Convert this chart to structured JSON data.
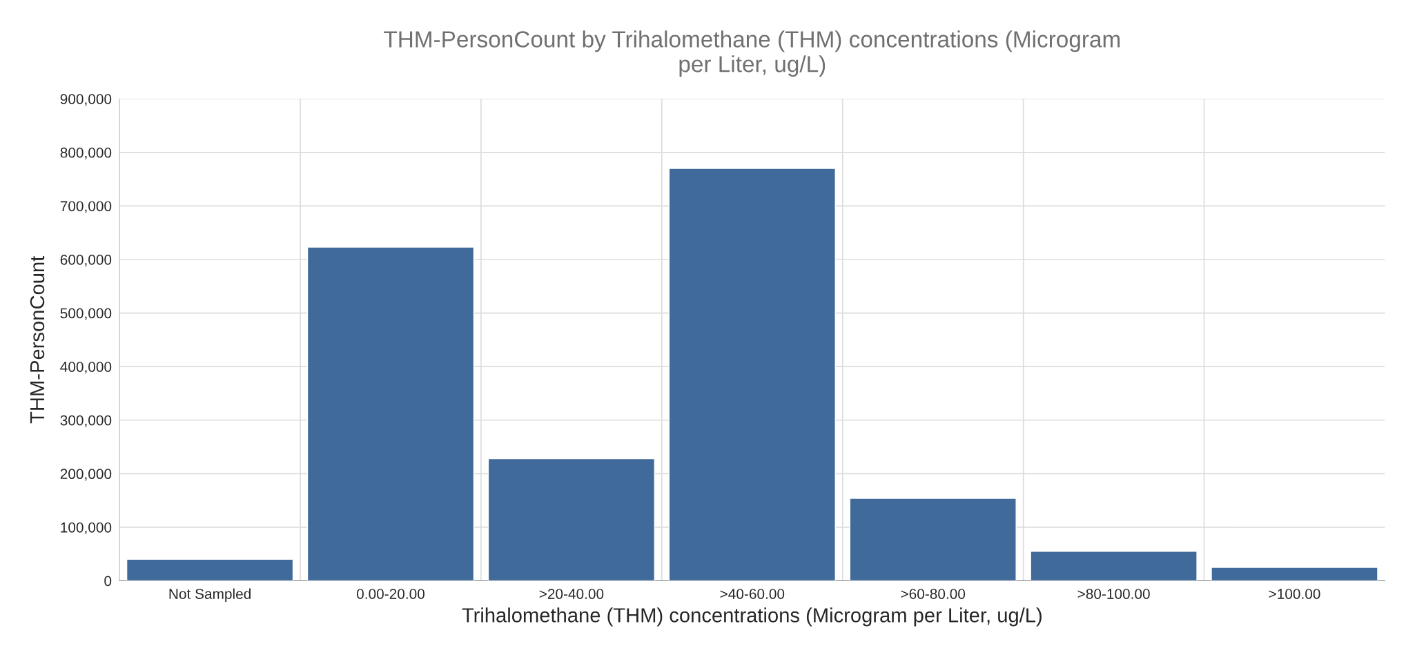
{
  "chart_data": {
    "type": "bar",
    "title": "THM-PersonCount by Trihalomethane (THM) concentrations (Microgram\nper Liter, ug/L)",
    "xlabel": "Trihalomethane (THM) concentrations (Microgram per Liter, ug/L)",
    "ylabel": "THM-PersonCount",
    "categories": [
      "Not Sampled",
      "0.00-20.00",
      ">20-40.00",
      ">40-60.00",
      ">60-80.00",
      ">80-100.00",
      ">100.00"
    ],
    "values": [
      40000,
      623000,
      228000,
      770000,
      154000,
      55000,
      25000
    ],
    "color": "#3f6a9a",
    "ylim": [
      0,
      900000
    ],
    "yticks": [
      {
        "value": 0,
        "label": "0"
      },
      {
        "value": 100000,
        "label": "100,000"
      },
      {
        "value": 200000,
        "label": "200,000"
      },
      {
        "value": 300000,
        "label": "300,000"
      },
      {
        "value": 400000,
        "label": "400,000"
      },
      {
        "value": 500000,
        "label": "500,000"
      },
      {
        "value": 600000,
        "label": "600,000"
      },
      {
        "value": 700000,
        "label": "700,000"
      },
      {
        "value": 800000,
        "label": "800,000"
      },
      {
        "value": 900000,
        "label": "900,000"
      }
    ],
    "grid": true
  }
}
